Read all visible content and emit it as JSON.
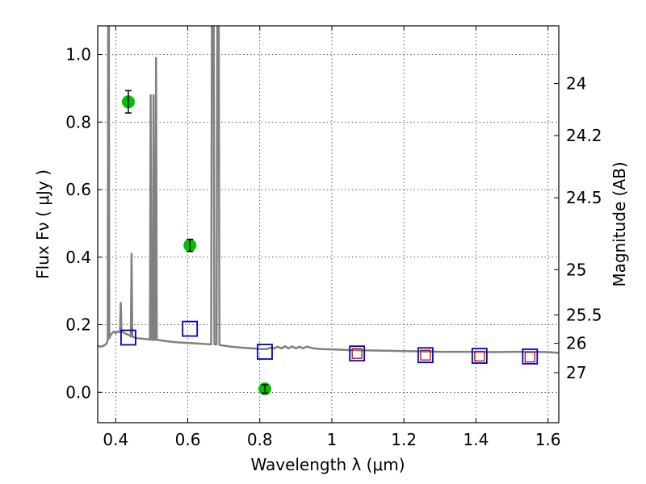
{
  "chart_data": {
    "type": "scatter",
    "title": "",
    "xlabel": "Wavelength  λ (μm)",
    "ylabel": "Flux  Fν ( μJy )",
    "ylabel_right": "Magnitude (AB)",
    "xlim": [
      0.35,
      1.63
    ],
    "ylim": [
      -0.09,
      1.085
    ],
    "grid": true,
    "x_ticks": [
      0.4,
      0.6,
      0.8,
      1.0,
      1.2,
      1.4,
      1.6
    ],
    "x_tick_labels": [
      "0.4",
      "0.6",
      "0.8",
      "1",
      "1.2",
      "1.4",
      "1.6"
    ],
    "y_ticks": [
      0.0,
      0.2,
      0.4,
      0.6,
      0.8,
      1.0
    ],
    "y_tick_labels": [
      "0.0",
      "0.2",
      "0.4",
      "0.6",
      "0.8",
      "1.0"
    ],
    "right_ticks": [
      {
        "label": "24",
        "flux": 0.914
      },
      {
        "label": "24.2",
        "flux": 0.76
      },
      {
        "label": "24.5",
        "flux": 0.576
      },
      {
        "label": "25",
        "flux": 0.363
      },
      {
        "label": "25.5",
        "flux": 0.229
      },
      {
        "label": "26",
        "flux": 0.145
      },
      {
        "label": "27",
        "flux": 0.058
      }
    ],
    "series": [
      {
        "kind": "line",
        "color": "#808080",
        "points": [
          [
            0.35,
            0.137
          ],
          [
            0.36,
            0.135
          ],
          [
            0.37,
            0.14
          ],
          [
            0.375,
            0.145
          ],
          [
            0.378,
            0.155
          ],
          [
            0.379,
            1.085
          ],
          [
            0.381,
            1.085
          ],
          [
            0.382,
            0.16
          ],
          [
            0.386,
            0.17
          ],
          [
            0.39,
            0.175
          ],
          [
            0.395,
            0.18
          ],
          [
            0.4,
            0.175
          ],
          [
            0.405,
            0.18
          ],
          [
            0.41,
            0.178
          ],
          [
            0.412,
            0.182
          ],
          [
            0.414,
            0.265
          ],
          [
            0.416,
            0.185
          ],
          [
            0.42,
            0.178
          ],
          [
            0.425,
            0.175
          ],
          [
            0.43,
            0.172
          ],
          [
            0.436,
            0.17
          ],
          [
            0.44,
            0.168
          ],
          [
            0.442,
            0.165
          ],
          [
            0.444,
            0.41
          ],
          [
            0.446,
            0.165
          ],
          [
            0.46,
            0.16
          ],
          [
            0.48,
            0.158
          ],
          [
            0.495,
            0.156
          ],
          [
            0.497,
            0.88
          ],
          [
            0.499,
            0.156
          ],
          [
            0.503,
            0.155
          ],
          [
            0.505,
            0.88
          ],
          [
            0.507,
            0.155
          ],
          [
            0.51,
            0.155
          ],
          [
            0.512,
            0.99
          ],
          [
            0.514,
            0.155
          ],
          [
            0.53,
            0.153
          ],
          [
            0.55,
            0.15
          ],
          [
            0.57,
            0.148
          ],
          [
            0.6,
            0.146
          ],
          [
            0.62,
            0.145
          ],
          [
            0.65,
            0.143
          ],
          [
            0.665,
            0.142
          ],
          [
            0.667,
            1.085
          ],
          [
            0.672,
            1.085
          ],
          [
            0.674,
            0.142
          ],
          [
            0.68,
            0.142
          ],
          [
            0.682,
            1.085
          ],
          [
            0.686,
            1.085
          ],
          [
            0.688,
            0.14
          ],
          [
            0.7,
            0.138
          ],
          [
            0.72,
            0.135
          ],
          [
            0.75,
            0.132
          ],
          [
            0.78,
            0.13
          ],
          [
            0.8,
            0.128
          ],
          [
            0.82,
            0.128
          ],
          [
            0.83,
            0.132
          ],
          [
            0.84,
            0.13
          ],
          [
            0.85,
            0.135
          ],
          [
            0.86,
            0.13
          ],
          [
            0.87,
            0.136
          ],
          [
            0.88,
            0.13
          ],
          [
            0.89,
            0.136
          ],
          [
            0.9,
            0.13
          ],
          [
            0.91,
            0.135
          ],
          [
            0.92,
            0.13
          ],
          [
            0.93,
            0.135
          ],
          [
            0.95,
            0.13
          ],
          [
            0.97,
            0.128
          ],
          [
            1.0,
            0.127
          ],
          [
            1.05,
            0.125
          ],
          [
            1.1,
            0.124
          ],
          [
            1.15,
            0.123
          ],
          [
            1.2,
            0.122
          ],
          [
            1.25,
            0.121
          ],
          [
            1.3,
            0.12
          ],
          [
            1.35,
            0.12
          ],
          [
            1.4,
            0.12
          ],
          [
            1.45,
            0.119
          ],
          [
            1.5,
            0.12
          ],
          [
            1.55,
            0.12
          ],
          [
            1.6,
            0.119
          ],
          [
            1.63,
            0.117
          ]
        ]
      },
      {
        "kind": "errorbar-points",
        "color": "#00c000",
        "points": [
          {
            "x": 0.435,
            "y": 0.86,
            "err": 0.033
          },
          {
            "x": 0.606,
            "y": 0.435,
            "err": 0.018
          },
          {
            "x": 0.814,
            "y": 0.01,
            "err": 0.012
          }
        ]
      },
      {
        "kind": "open-squares",
        "color": "#0000cc",
        "points": [
          [
            0.435,
            0.162
          ],
          [
            0.606,
            0.188
          ],
          [
            0.814,
            0.12
          ],
          [
            1.07,
            0.115
          ],
          [
            1.26,
            0.11
          ],
          [
            1.41,
            0.108
          ],
          [
            1.55,
            0.106
          ]
        ]
      },
      {
        "kind": "small-open-squares",
        "color": "#cc0000",
        "points": [
          [
            1.07,
            0.115
          ],
          [
            1.26,
            0.11
          ],
          [
            1.41,
            0.107
          ],
          [
            1.55,
            0.104
          ]
        ]
      }
    ]
  }
}
